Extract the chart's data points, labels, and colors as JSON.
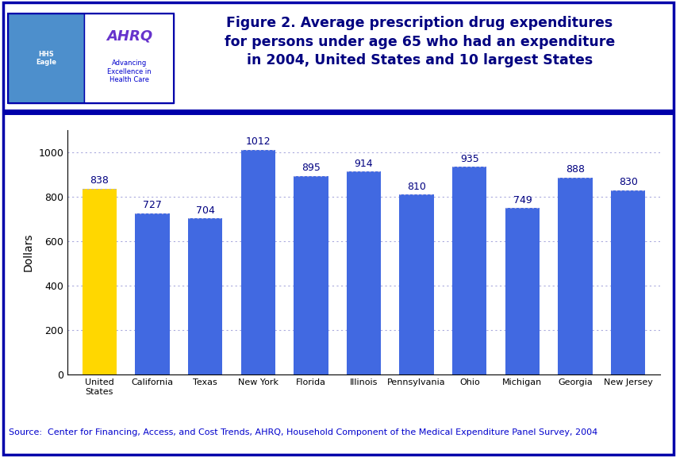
{
  "categories": [
    "United\nStates",
    "California",
    "Texas",
    "New York",
    "Florida",
    "Illinois",
    "Pennsylvania",
    "Ohio",
    "Michigan",
    "Georgia",
    "New Jersey"
  ],
  "values": [
    838,
    727,
    704,
    1012,
    895,
    914,
    810,
    935,
    749,
    888,
    830
  ],
  "bar_colors": [
    "#FFD700",
    "#4169E1",
    "#4169E1",
    "#4169E1",
    "#4169E1",
    "#4169E1",
    "#4169E1",
    "#4169E1",
    "#4169E1",
    "#4169E1",
    "#4169E1"
  ],
  "ylabel": "Dollars",
  "ylim": [
    0,
    1100
  ],
  "yticks": [
    0,
    200,
    400,
    600,
    800,
    1000
  ],
  "title_line1": "Figure 2. Average prescription drug expenditures",
  "title_line2": "for persons under age 65 who had an expenditure",
  "title_line3": "in 2004, United States and 10 largest States",
  "title_color": "#000080",
  "title_fontsize": 12.5,
  "bar_label_fontsize": 9,
  "bar_label_color": "#000080",
  "ylabel_fontsize": 10,
  "source_text": "Source:  Center for Financing, Access, and Cost Trends, AHRQ, Household Component of the Medical Expenditure Panel Survey, 2004",
  "source_fontsize": 8,
  "source_color": "#0000CC",
  "background_color": "#FFFFFF",
  "border_color": "#0000AA",
  "separator_color": "#0000AA",
  "grid_color": "#AAAADD",
  "xtick_fontsize": 8,
  "ytick_fontsize": 9,
  "hhs_bg": "#4d8fcc",
  "ahrq_bg": "#FFFFFF",
  "logo_border": "#0000AA",
  "ahrq_text_color": "#6633CC",
  "advancing_text_color": "#0000CC"
}
